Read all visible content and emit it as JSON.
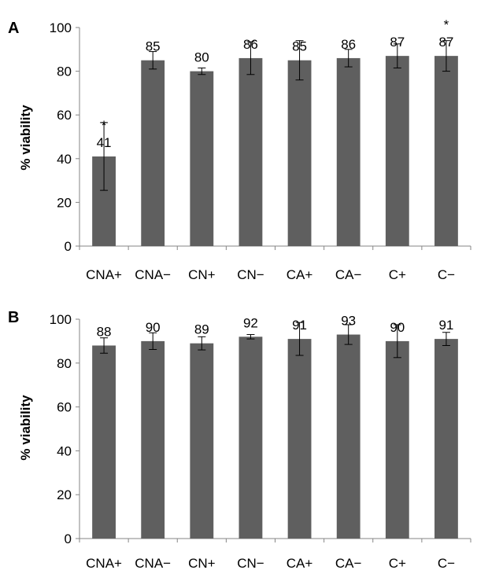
{
  "chart_data": [
    {
      "type": "bar",
      "panel": "A",
      "ylabel": "% viability",
      "ylim": [
        0,
        100
      ],
      "yticks": [
        "0",
        "20",
        "40",
        "60",
        "80",
        "100"
      ],
      "categories": [
        "CNA+",
        "CNA−",
        "CN+",
        "CN−",
        "CA+",
        "CA−",
        "C+",
        "C−"
      ],
      "values": [
        41,
        85,
        80,
        86,
        85,
        86,
        87,
        87
      ],
      "value_labels": [
        "41",
        "85",
        "80",
        "86",
        "85",
        "86",
        "87",
        "87"
      ],
      "error": [
        15.5,
        4,
        1.5,
        7.5,
        9,
        4,
        5.5,
        7
      ],
      "significance": [
        "*",
        "",
        "",
        "",
        "",
        "",
        "",
        "*"
      ]
    },
    {
      "type": "bar",
      "panel": "B",
      "ylabel": "% viability",
      "ylim": [
        0,
        100
      ],
      "yticks": [
        "0",
        "20",
        "40",
        "60",
        "80",
        "100"
      ],
      "categories": [
        "CNA+",
        "CNA−",
        "CN+",
        "CN−",
        "CA+",
        "CA−",
        "C+",
        "C−"
      ],
      "values": [
        88,
        90,
        89,
        92,
        91,
        93,
        90,
        91
      ],
      "value_labels": [
        "88",
        "90",
        "89",
        "92",
        "91",
        "93",
        "90",
        "91"
      ],
      "error": [
        3.5,
        3.8,
        3,
        1,
        7.5,
        4.5,
        7.5,
        3
      ],
      "significance": [
        "",
        "",
        "",
        "",
        "",
        "",
        "",
        ""
      ]
    }
  ],
  "colors": {
    "bar": "#5f5f5f",
    "axis": "#868686"
  }
}
